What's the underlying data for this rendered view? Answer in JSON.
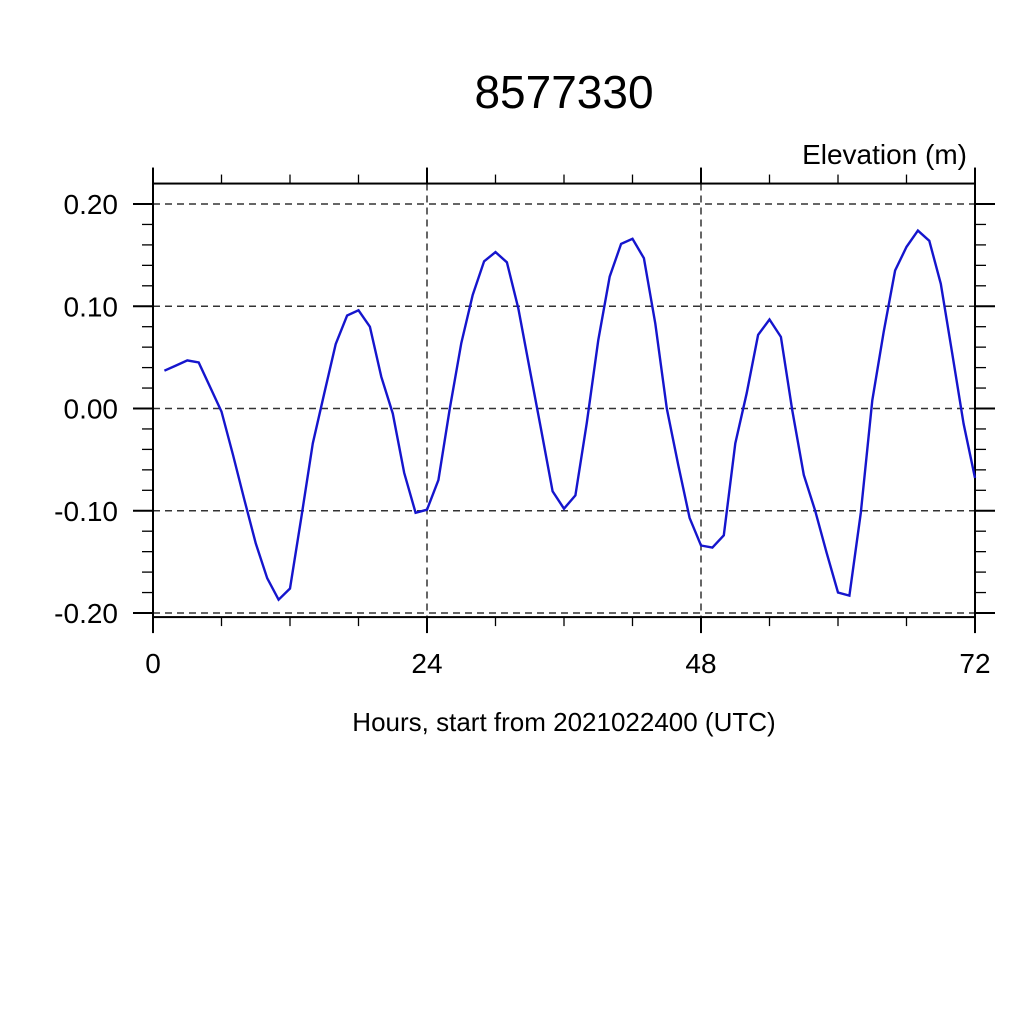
{
  "chart_data": {
    "type": "line",
    "title": "8577330",
    "ylabel": "Elevation (m)",
    "xlabel": "Hours, start from 2021022400 (UTC)",
    "legend_position": "none",
    "grid": true,
    "line_color": "#1515cd",
    "grid_color": "#333333",
    "axis_color": "#000000",
    "xlim": [
      0,
      72
    ],
    "ylim": [
      -0.204,
      0.22
    ],
    "x_tick_values": [
      0,
      24,
      48,
      72
    ],
    "x_tick_labels": [
      "0",
      "24",
      "48",
      "72"
    ],
    "x_tick_minor_step": 6,
    "x_gridlines": [
      24,
      48
    ],
    "y_tick_values": [
      0.2,
      0.1,
      0.0,
      -0.1,
      -0.2
    ],
    "y_tick_labels": [
      "0.20",
      "0.10",
      "0.00",
      "-0.10",
      "-0.20"
    ],
    "y_tick_minor_step": 0.02,
    "y_gridlines": [
      0.2,
      0.1,
      0.0,
      -0.1,
      -0.2
    ],
    "hours": [
      1,
      2,
      3,
      4,
      5,
      6,
      7,
      8,
      9,
      10,
      11,
      12,
      13,
      14,
      15,
      16,
      17,
      18,
      19,
      20,
      21,
      22,
      23,
      24,
      25,
      26,
      27,
      28,
      29,
      30,
      31,
      32,
      33,
      34,
      35,
      36,
      37,
      38,
      39,
      40,
      41,
      42,
      43,
      44,
      45,
      46,
      47,
      48,
      49,
      50,
      51,
      52,
      53,
      54,
      55,
      56,
      57,
      58,
      59,
      60,
      61,
      62,
      63,
      64,
      65,
      66,
      67,
      68,
      69,
      70,
      71,
      72
    ],
    "elevation_m": [
      0.037,
      0.042,
      0.047,
      0.045,
      0.021,
      -0.003,
      -0.045,
      -0.089,
      -0.132,
      -0.166,
      -0.187,
      -0.176,
      -0.106,
      -0.034,
      0.015,
      0.063,
      0.091,
      0.096,
      0.08,
      0.031,
      -0.005,
      -0.063,
      -0.102,
      -0.099,
      -0.07,
      0.0,
      0.064,
      0.111,
      0.144,
      0.153,
      0.143,
      0.098,
      0.038,
      -0.021,
      -0.081,
      -0.098,
      -0.085,
      -0.014,
      0.067,
      0.129,
      0.161,
      0.166,
      0.147,
      0.083,
      0.0,
      -0.055,
      -0.107,
      -0.134,
      -0.136,
      -0.124,
      -0.034,
      0.015,
      0.072,
      0.087,
      0.07,
      -0.002,
      -0.065,
      -0.1,
      -0.141,
      -0.18,
      -0.183,
      -0.102,
      0.008,
      0.075,
      0.135,
      0.158,
      0.174,
      0.164,
      0.122,
      0.054,
      -0.015,
      -0.068
    ]
  }
}
